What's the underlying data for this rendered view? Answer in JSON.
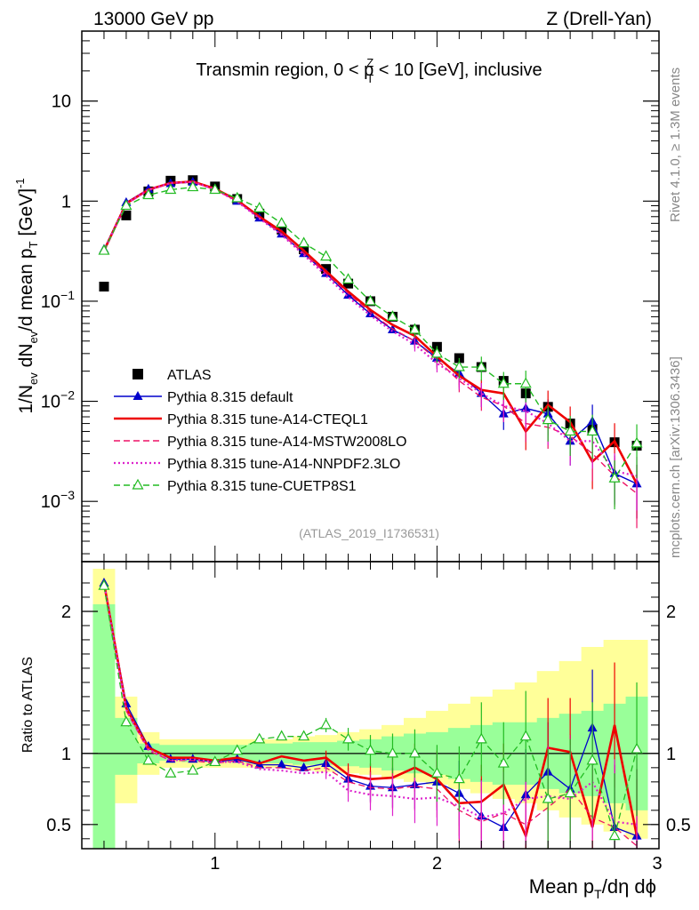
{
  "header": {
    "left": "13000 GeV pp",
    "right": "Z (Drell-Yan)"
  },
  "side": {
    "rivet": "Rivet 4.1.0, ≥ 1.3M events",
    "mcplots": "mcplots.cern.ch [arXiv:1306.3436]"
  },
  "chart_data": [
    {
      "type": "scatter",
      "title": "Transmin region, 0 < p_T^Z < 10 [GeV], inclusive",
      "title_parts": {
        "prefix": "Transmin region, 0 < p",
        "sub": "T",
        "sup": "Z",
        "suffix": " < 10 [GeV], inclusive"
      },
      "ylabel": "1/N_ev dN_ev/d mean p_T [GeV]^-1",
      "ylabel_parts": {
        "a": "1/N",
        "a_sub": "ev",
        "b": " dN",
        "b_sub": "ev",
        "c": "/d mean p",
        "c_sub": "T",
        "d": " [GeV]",
        "d_sup": "-1"
      },
      "yscale": "log",
      "xlim": [
        0.4,
        3.0
      ],
      "ylim": [
        0.00025,
        50
      ],
      "yticks": [
        {
          "value": 10,
          "label": "10"
        },
        {
          "value": 1,
          "label": "1"
        },
        {
          "value": 0.1,
          "label": "10",
          "sup": "−1"
        },
        {
          "value": 0.01,
          "label": "10",
          "sup": "−2"
        },
        {
          "value": 0.001,
          "label": "10",
          "sup": "−3"
        }
      ],
      "watermark": "(ATLAS_2019_I1736531)",
      "legend_position": "lower-left",
      "x": [
        0.5,
        0.6,
        0.7,
        0.8,
        0.9,
        1.0,
        1.1,
        1.2,
        1.3,
        1.4,
        1.5,
        1.6,
        1.7,
        1.8,
        1.9,
        2.0,
        2.1,
        2.2,
        2.3,
        2.4,
        2.5,
        2.6,
        2.7,
        2.8,
        2.9
      ],
      "series": [
        {
          "name": "ATLAS",
          "color": "#000000",
          "style": "data",
          "values": [
            0.14,
            0.72,
            1.25,
            1.6,
            1.62,
            1.4,
            1.05,
            0.75,
            0.52,
            0.33,
            0.21,
            0.15,
            0.1,
            0.07,
            0.052,
            0.035,
            0.027,
            0.022,
            0.016,
            0.012,
            0.0088,
            0.006,
            0.0053,
            0.0039,
            0.0036
          ]
        },
        {
          "name": "Pythia 8.315 default",
          "color": "#0000cc",
          "style": "solid-triangle",
          "values": [
            0.33,
            0.97,
            1.32,
            1.5,
            1.55,
            1.32,
            1.0,
            0.68,
            0.47,
            0.3,
            0.19,
            0.115,
            0.075,
            0.052,
            0.04,
            0.027,
            0.019,
            0.012,
            0.0075,
            0.0085,
            0.0075,
            0.004,
            0.0063,
            0.0019,
            0.0015
          ]
        },
        {
          "name": "Pythia 8.315 tune-A14-CTEQL1",
          "color": "#ee0000",
          "style": "solid-thick",
          "values": [
            0.32,
            0.95,
            1.3,
            1.52,
            1.57,
            1.33,
            1.02,
            0.7,
            0.5,
            0.32,
            0.2,
            0.125,
            0.082,
            0.058,
            0.045,
            0.028,
            0.018,
            0.013,
            0.012,
            0.005,
            0.0092,
            0.0062,
            0.0025,
            0.004,
            0.0015
          ]
        },
        {
          "name": "Pythia 8.315 tune-A14-MSTW2008LO",
          "color": "#ee1166",
          "style": "dashed",
          "values": [
            0.31,
            0.93,
            1.28,
            1.5,
            1.55,
            1.3,
            1.0,
            0.68,
            0.47,
            0.3,
            0.19,
            0.12,
            0.077,
            0.053,
            0.04,
            0.026,
            0.016,
            0.011,
            0.009,
            0.006,
            0.0055,
            0.0045,
            0.003,
            0.0018,
            0.0012
          ]
        },
        {
          "name": "Pythia 8.315 tune-A14-NNPDF2.3LO",
          "color": "#dd22cc",
          "style": "dotted",
          "values": [
            0.32,
            0.95,
            1.3,
            1.52,
            1.56,
            1.31,
            0.99,
            0.67,
            0.46,
            0.29,
            0.18,
            0.11,
            0.072,
            0.05,
            0.037,
            0.024,
            0.017,
            0.012,
            0.009,
            0.008,
            0.006,
            0.004,
            0.004,
            0.002,
            0.0018
          ]
        },
        {
          "name": "Pythia 8.315 tune-CUETP8S1",
          "color": "#22bb22",
          "style": "dashed-open-triangle",
          "values": [
            0.32,
            0.9,
            1.15,
            1.3,
            1.38,
            1.3,
            1.07,
            0.85,
            0.6,
            0.38,
            0.28,
            0.165,
            0.1,
            0.07,
            0.052,
            0.03,
            0.022,
            0.022,
            0.015,
            0.015,
            0.0065,
            0.005,
            0.005,
            0.0017,
            0.0038
          ]
        }
      ]
    },
    {
      "type": "line",
      "ylabel": "Ratio to ATLAS",
      "xlabel": "Mean p_T/dη dϕ",
      "xlabel_parts": {
        "a": "Mean p",
        "a_sub": "T",
        "b": "/dη dϕ"
      },
      "xlim": [
        0.4,
        3.0
      ],
      "ylim": [
        0.33,
        2.35
      ],
      "xticks": [
        {
          "value": 1,
          "label": "1"
        },
        {
          "value": 2,
          "label": "2"
        },
        {
          "value": 3,
          "label": "3"
        }
      ],
      "yticks": [
        {
          "value": 0.5,
          "label": "0.5"
        },
        {
          "value": 1,
          "label": "1"
        },
        {
          "value": 2,
          "label": "2"
        }
      ],
      "reference_line": 1,
      "uncertainty_bands": {
        "yellow": {
          "color": "#ffff99",
          "edges": [
            0.45,
            0.55,
            0.65,
            0.75,
            0.85,
            0.95,
            1.05,
            1.15,
            1.25,
            1.35,
            1.45,
            1.55,
            1.65,
            1.75,
            1.85,
            1.95,
            2.05,
            2.15,
            2.25,
            2.35,
            2.45,
            2.55,
            2.65,
            2.75,
            2.85,
            2.95
          ],
          "low": [
            0.3,
            0.65,
            0.85,
            0.9,
            0.9,
            0.9,
            0.9,
            0.9,
            0.9,
            0.88,
            0.87,
            0.86,
            0.85,
            0.82,
            0.8,
            0.78,
            0.75,
            0.72,
            0.68,
            0.65,
            0.6,
            0.55,
            0.5,
            0.45,
            0.4
          ],
          "high": [
            2.3,
            1.4,
            1.15,
            1.1,
            1.1,
            1.1,
            1.1,
            1.1,
            1.1,
            1.12,
            1.13,
            1.15,
            1.17,
            1.2,
            1.25,
            1.3,
            1.35,
            1.4,
            1.45,
            1.5,
            1.58,
            1.65,
            1.75,
            1.8,
            1.8
          ]
        },
        "green": {
          "color": "#99ff99",
          "edges": [
            0.45,
            0.55,
            0.65,
            0.75,
            0.85,
            0.95,
            1.05,
            1.15,
            1.25,
            1.35,
            1.45,
            1.55,
            1.65,
            1.75,
            1.85,
            1.95,
            2.05,
            2.15,
            2.25,
            2.35,
            2.45,
            2.55,
            2.65,
            2.75,
            2.85,
            2.95
          ],
          "low": [
            0.3,
            0.85,
            0.93,
            0.95,
            0.94,
            0.94,
            0.94,
            0.93,
            0.93,
            0.92,
            0.92,
            0.91,
            0.9,
            0.88,
            0.86,
            0.85,
            0.82,
            0.8,
            0.78,
            0.78,
            0.75,
            0.72,
            0.7,
            0.65,
            0.6
          ],
          "high": [
            2.05,
            1.25,
            1.07,
            1.06,
            1.06,
            1.06,
            1.06,
            1.07,
            1.07,
            1.08,
            1.08,
            1.09,
            1.1,
            1.12,
            1.14,
            1.15,
            1.18,
            1.2,
            1.22,
            1.22,
            1.25,
            1.28,
            1.3,
            1.35,
            1.4
          ]
        }
      },
      "series": [
        {
          "name": "Pythia 8.315 default",
          "color": "#0000cc",
          "values": [
            2.2,
            1.35,
            1.05,
            0.96,
            0.96,
            0.94,
            0.96,
            0.92,
            0.92,
            0.9,
            0.93,
            0.82,
            0.77,
            0.76,
            0.78,
            0.8,
            0.72,
            0.56,
            0.48,
            0.71,
            0.87,
            0.75,
            1.18,
            0.48,
            0.42
          ]
        },
        {
          "name": "Pythia 8.315 tune-A14-CTEQL1",
          "color": "#ee0000",
          "values": [
            2.2,
            1.32,
            1.04,
            0.97,
            0.97,
            0.95,
            0.97,
            0.93,
            0.98,
            0.95,
            0.97,
            0.85,
            0.82,
            0.83,
            0.9,
            0.82,
            0.65,
            0.66,
            0.78,
            0.42,
            1.04,
            1.01,
            0.48,
            1.2,
            0.42
          ]
        },
        {
          "name": "Pythia 8.315 tune-A14-MSTW2008LO",
          "color": "#ee1166",
          "values": [
            2.18,
            1.3,
            1.02,
            0.95,
            0.95,
            0.93,
            0.95,
            0.9,
            0.9,
            0.88,
            0.9,
            0.8,
            0.76,
            0.75,
            0.77,
            0.75,
            0.6,
            0.52,
            0.58,
            0.5,
            0.62,
            0.75,
            0.55,
            0.48,
            0.35
          ]
        },
        {
          "name": "Pythia 8.315 tune-A14-NNPDF2.3LO",
          "color": "#dd22cc",
          "values": [
            2.2,
            1.31,
            1.03,
            0.95,
            0.96,
            0.94,
            0.94,
            0.89,
            0.88,
            0.86,
            0.87,
            0.74,
            0.71,
            0.7,
            0.68,
            0.69,
            0.63,
            0.55,
            0.58,
            0.68,
            0.7,
            0.68,
            0.8,
            0.52,
            0.5
          ]
        },
        {
          "name": "Pythia 8.315 tune-CUETP8S1",
          "color": "#22bb22",
          "values": [
            2.18,
            1.22,
            0.95,
            0.86,
            0.88,
            0.94,
            1.02,
            1.1,
            1.12,
            1.12,
            1.2,
            1.1,
            1.02,
            1.0,
            1.0,
            0.86,
            0.82,
            1.1,
            0.93,
            1.12,
            0.68,
            0.72,
            0.95,
            0.42,
            1.03
          ]
        }
      ]
    }
  ]
}
